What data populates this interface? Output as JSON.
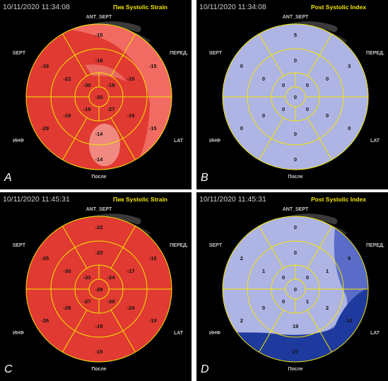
{
  "colors": {
    "strain_base": "#e03a32",
    "strain_light": "#f26b63",
    "strain_pale": "#f08a80",
    "index_base": "#aeb4e4",
    "index_mid": "#5a6cc8",
    "index_dark": "#1f3a9e",
    "grid": "#f2e600",
    "ring": "#3a3a3a"
  },
  "wall_labels": {
    "top": "ANT_SEPT",
    "left_top": "SEPT",
    "right_top": "ПЕРЕД.",
    "left_bottom": "ИНФ",
    "right_bottom": "LAT",
    "bottom": "После"
  },
  "panels": [
    {
      "letter": "A",
      "timestamp": "10/11/2020 11:34:08",
      "title": "Пик Systolic Strain",
      "kind": "strain",
      "values": [
        "-15",
        "-15",
        "-15",
        "-14",
        "-29",
        "-16",
        "-18",
        "-15",
        "-19",
        "-14",
        "-19",
        "-22",
        "-30",
        "-18",
        "-27",
        "-19",
        "-33"
      ]
    },
    {
      "letter": "B",
      "timestamp": "10/11/2020 11:34:08",
      "title": "Post Systolic Index",
      "kind": "index",
      "values": [
        "5",
        "3",
        "0",
        "0",
        "0",
        "0",
        "0",
        "0",
        "0",
        "0",
        "0",
        "0",
        "0",
        "0",
        "0",
        "0",
        "0"
      ]
    },
    {
      "letter": "C",
      "timestamp": "10/11/2020 11:45:31",
      "title": "Пик Systolic Strain",
      "kind": "strain",
      "values": [
        "-22",
        "-15",
        "-19",
        "-19",
        "-26",
        "-25",
        "-23",
        "-17",
        "-24",
        "-19",
        "-28",
        "-30",
        "-33",
        "-24",
        "-30",
        "-27",
        "-29"
      ]
    },
    {
      "letter": "D",
      "timestamp": "10/11/2020 11:45:31",
      "title": "Post Systolic Index",
      "kind": "index",
      "values": [
        "0",
        "9",
        "14",
        "27",
        "2",
        "2",
        "0",
        "1",
        "2",
        "19",
        "0",
        "1",
        "0",
        "0",
        "1",
        "0",
        "0"
      ]
    }
  ]
}
